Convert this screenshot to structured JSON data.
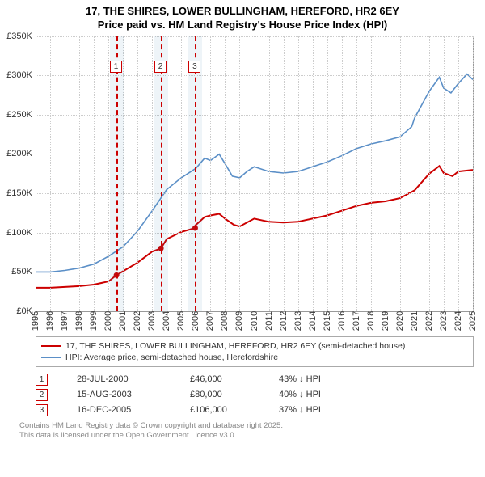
{
  "title": {
    "line1": "17, THE SHIRES, LOWER BULLINGHAM, HEREFORD, HR2 6EY",
    "line2": "Price paid vs. HM Land Registry's House Price Index (HPI)"
  },
  "chart": {
    "type": "line",
    "background_color": "#ffffff",
    "grid_color": "#cccccc",
    "ylim": [
      0,
      350
    ],
    "ytick_step": 50,
    "ytick_prefix": "£",
    "ytick_suffix": "K",
    "xlim": [
      1995,
      2025
    ],
    "xtick_step": 1,
    "shade_bands": [
      {
        "from": 2000.1,
        "to": 2001.1,
        "color": "rgba(70,130,180,0.09)"
      },
      {
        "from": 2003.1,
        "to": 2004.1,
        "color": "rgba(70,130,180,0.09)"
      },
      {
        "from": 2005.4,
        "to": 2006.4,
        "color": "rgba(70,130,180,0.09)"
      }
    ],
    "markers": [
      {
        "id": "1",
        "x": 2000.55,
        "color": "#cc0000"
      },
      {
        "id": "2",
        "x": 2003.6,
        "color": "#cc0000"
      },
      {
        "id": "3",
        "x": 2005.95,
        "color": "#cc0000"
      }
    ],
    "series_property": {
      "color": "#cc0000",
      "width": 2,
      "points": [
        [
          1995,
          30
        ],
        [
          1996,
          30
        ],
        [
          1997,
          31
        ],
        [
          1998,
          32
        ],
        [
          1999,
          34
        ],
        [
          2000,
          38
        ],
        [
          2000.55,
          46
        ],
        [
          2001,
          51
        ],
        [
          2002,
          62
        ],
        [
          2003,
          76
        ],
        [
          2003.6,
          80
        ],
        [
          2004,
          92
        ],
        [
          2005,
          101
        ],
        [
          2005.95,
          106
        ],
        [
          2006,
          110
        ],
        [
          2006.6,
          120
        ],
        [
          2007,
          122
        ],
        [
          2007.6,
          124
        ],
        [
          2008,
          118
        ],
        [
          2008.6,
          110
        ],
        [
          2009,
          108
        ],
        [
          2010,
          118
        ],
        [
          2011,
          114
        ],
        [
          2012,
          113
        ],
        [
          2013,
          114
        ],
        [
          2014,
          118
        ],
        [
          2015,
          122
        ],
        [
          2016,
          128
        ],
        [
          2017,
          134
        ],
        [
          2018,
          138
        ],
        [
          2019,
          140
        ],
        [
          2020,
          144
        ],
        [
          2021,
          154
        ],
        [
          2022,
          175
        ],
        [
          2022.7,
          185
        ],
        [
          2023,
          176
        ],
        [
          2023.6,
          172
        ],
        [
          2024,
          178
        ],
        [
          2025,
          180
        ]
      ],
      "sale_points": [
        [
          2000.55,
          46
        ],
        [
          2003.6,
          80
        ],
        [
          2005.95,
          106
        ]
      ]
    },
    "series_hpi": {
      "color": "#5b8fc7",
      "width": 1.6,
      "points": [
        [
          1995,
          50
        ],
        [
          1996,
          50
        ],
        [
          1997,
          52
        ],
        [
          1998,
          55
        ],
        [
          1999,
          60
        ],
        [
          2000,
          70
        ],
        [
          2001,
          82
        ],
        [
          2002,
          102
        ],
        [
          2003,
          128
        ],
        [
          2004,
          155
        ],
        [
          2005,
          170
        ],
        [
          2006,
          182
        ],
        [
          2006.6,
          195
        ],
        [
          2007,
          192
        ],
        [
          2007.6,
          200
        ],
        [
          2008,
          188
        ],
        [
          2008.5,
          172
        ],
        [
          2009,
          170
        ],
        [
          2009.5,
          178
        ],
        [
          2010,
          184
        ],
        [
          2011,
          178
        ],
        [
          2012,
          176
        ],
        [
          2013,
          178
        ],
        [
          2014,
          184
        ],
        [
          2015,
          190
        ],
        [
          2016,
          198
        ],
        [
          2017,
          207
        ],
        [
          2018,
          213
        ],
        [
          2019,
          217
        ],
        [
          2020,
          222
        ],
        [
          2020.8,
          235
        ],
        [
          2021,
          246
        ],
        [
          2022,
          280
        ],
        [
          2022.7,
          298
        ],
        [
          2023,
          284
        ],
        [
          2023.5,
          278
        ],
        [
          2024,
          290
        ],
        [
          2024.6,
          302
        ],
        [
          2025,
          295
        ]
      ]
    }
  },
  "legend": {
    "row1": {
      "color": "#cc0000",
      "label": "17, THE SHIRES, LOWER BULLINGHAM, HEREFORD, HR2 6EY (semi-detached house)"
    },
    "row2": {
      "color": "#5b8fc7",
      "label": "HPI: Average price, semi-detached house, Herefordshire"
    }
  },
  "price_table": {
    "rows": [
      {
        "id": "1",
        "date": "28-JUL-2000",
        "price": "£46,000",
        "pct": "43% ↓ HPI"
      },
      {
        "id": "2",
        "date": "15-AUG-2003",
        "price": "£80,000",
        "pct": "40% ↓ HPI"
      },
      {
        "id": "3",
        "date": "16-DEC-2005",
        "price": "£106,000",
        "pct": "37% ↓ HPI"
      }
    ]
  },
  "footer": {
    "line1": "Contains HM Land Registry data © Crown copyright and database right 2025.",
    "line2": "This data is licensed under the Open Government Licence v3.0."
  }
}
